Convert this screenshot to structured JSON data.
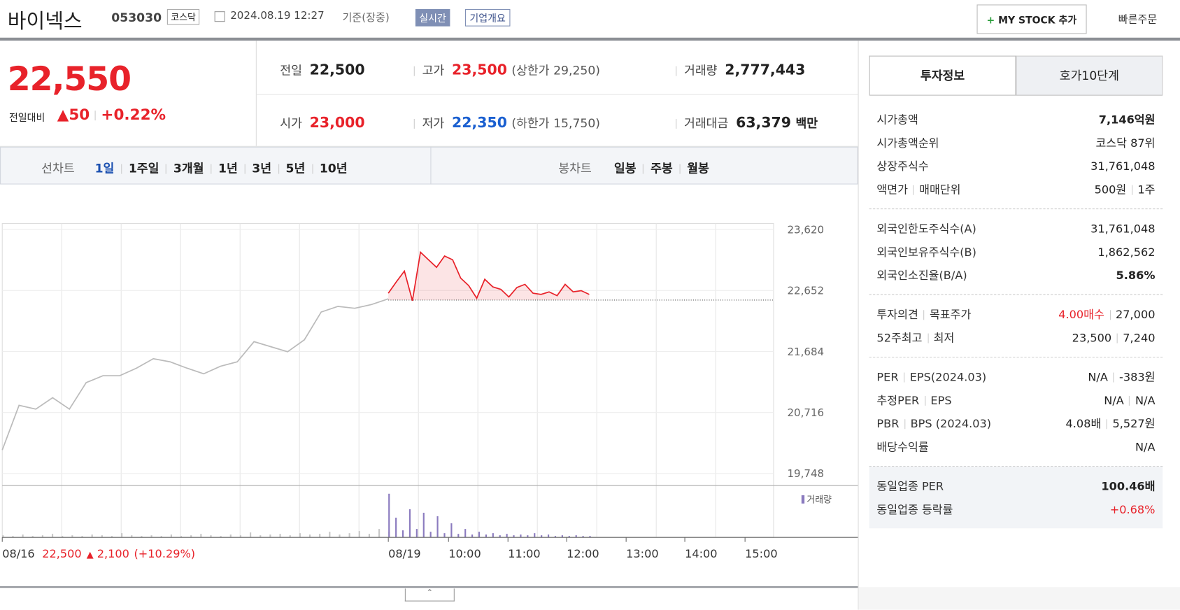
{
  "header": {
    "title": "바이넥스",
    "code": "053030",
    "market": "코스닥",
    "datetime": "2024.08.19 12:27",
    "basis": "기준(장중)",
    "realtime": "실시간",
    "company": "기업개요",
    "mystock": "MY STOCK 추가",
    "quick_order": "빠른주문"
  },
  "quote": {
    "price": "22,550",
    "change_label": "전일대비",
    "change": "50",
    "rate": "+0.22%",
    "cells": [
      {
        "label": "전일",
        "value": "22,500"
      },
      {
        "label": "고가",
        "value": "23,500",
        "note": "(상한가 29,250)"
      },
      {
        "label": "거래량",
        "value": "2,777,443"
      },
      {
        "label": "시가",
        "value": "23,000"
      },
      {
        "label": "저가",
        "value": "22,350",
        "note": "(하한가 15,750)"
      },
      {
        "label": "거래대금",
        "value": "63,379",
        "note": "백만"
      }
    ]
  },
  "tabs": {
    "line_label": "선차트",
    "line_periods": [
      "1일",
      "1주일",
      "3개월",
      "1년",
      "3년",
      "5년",
      "10년"
    ],
    "candle_label": "봉차트",
    "candle_periods": [
      "일봉",
      "주봉",
      "월봉"
    ]
  },
  "chart": {
    "type": "line",
    "ylim": [
      19558,
      23715
    ],
    "yticks": [
      {
        "value": 23620,
        "label": "23,620"
      },
      {
        "value": 22652,
        "label": "22,652"
      },
      {
        "value": 21684,
        "label": "21,684"
      },
      {
        "value": 20716,
        "label": "20,716"
      },
      {
        "value": 19748,
        "label": "19,748"
      }
    ],
    "grid": true,
    "baseline": 22500,
    "series": [
      {
        "color": "#bbbbbb",
        "values": [
          20120,
          20830,
          20770,
          20950,
          20770,
          21190,
          21300,
          21300,
          21420,
          21570,
          21520,
          21420,
          21330,
          21450,
          21520,
          21840,
          21760,
          21680,
          21870,
          22310,
          22400,
          22370,
          22430,
          22520
        ]
      },
      {
        "color": "#e8222a",
        "values": [
          22610,
          22790,
          22960,
          22490,
          23260,
          23140,
          23020,
          23200,
          23140,
          22850,
          22730,
          22530,
          22830,
          22710,
          22670,
          22550,
          22700,
          22750,
          22610,
          22590,
          22630,
          22570,
          22750,
          22630,
          22650,
          22590
        ]
      }
    ],
    "x_labels": [
      "08/16",
      "08/19",
      "10:00",
      "11:00",
      "12:00",
      "13:00",
      "14:00",
      "15:00"
    ],
    "prev_summary": {
      "close": "22,500",
      "change": "2,100",
      "rate": "(+10.29%)"
    },
    "volume_legend": "거래량",
    "volume": [
      {
        "color": "#c8c8c8",
        "values": [
          3,
          2,
          4,
          2,
          3,
          5,
          2,
          3,
          2,
          4,
          3,
          2,
          6,
          3,
          2,
          3,
          2,
          4,
          2,
          3,
          5,
          3,
          2,
          4,
          3,
          7,
          3,
          4,
          5,
          3,
          6,
          4,
          5,
          8,
          4,
          6,
          9,
          5,
          12,
          8
        ]
      },
      {
        "color": "#8b7bbf",
        "values": [
          62,
          28,
          10,
          40,
          12,
          35,
          8,
          30,
          6,
          20,
          5,
          12,
          4,
          8,
          4,
          6,
          3,
          5,
          3,
          4,
          3,
          6,
          3,
          4,
          2,
          3,
          2,
          3,
          2,
          2
        ]
      }
    ]
  },
  "sidebar": {
    "tabs": [
      "투자정보",
      "호가10단계"
    ],
    "groups": [
      [
        {
          "label": [
            "시가총액"
          ],
          "value": [
            "7,146억원"
          ]
        },
        {
          "label": [
            "시가총액순위"
          ],
          "value": [
            "코스닥 87위"
          ]
        },
        {
          "label": [
            "상장주식수"
          ],
          "value": [
            "31,761,048"
          ]
        },
        {
          "label": [
            "액면가",
            "매매단위"
          ],
          "value": [
            "500원",
            "1주"
          ]
        }
      ],
      [
        {
          "label": [
            "외국인한도주식수(A)"
          ],
          "value": [
            "31,761,048"
          ]
        },
        {
          "label": [
            "외국인보유주식수(B)"
          ],
          "value": [
            "1,862,562"
          ]
        },
        {
          "label": [
            "외국인소진율(B/A)"
          ],
          "value": [
            "5.86%"
          ]
        }
      ],
      [
        {
          "label": [
            "투자의견",
            "목표주가"
          ],
          "value": [
            "4.00매수",
            "27,000"
          ]
        },
        {
          "label": [
            "52주최고",
            "최저"
          ],
          "value": [
            "23,500",
            "7,240"
          ]
        }
      ],
      [
        {
          "label": [
            "PER",
            "EPS(2024.03)"
          ],
          "value": [
            "N/A",
            "-383원"
          ]
        },
        {
          "label": [
            "추정PER",
            "EPS"
          ],
          "value": [
            "N/A",
            "N/A"
          ]
        },
        {
          "label": [
            "PBR",
            "BPS (2024.03)"
          ],
          "value": [
            "4.08배",
            "5,527원"
          ]
        },
        {
          "label": [
            "배당수익률"
          ],
          "value": [
            "N/A"
          ]
        }
      ],
      [
        {
          "label": [
            "동일업종 PER"
          ],
          "value": [
            "100.46배"
          ]
        },
        {
          "label": [
            "동일업종 등락률"
          ],
          "value": [
            "+0.68%"
          ]
        }
      ]
    ]
  }
}
